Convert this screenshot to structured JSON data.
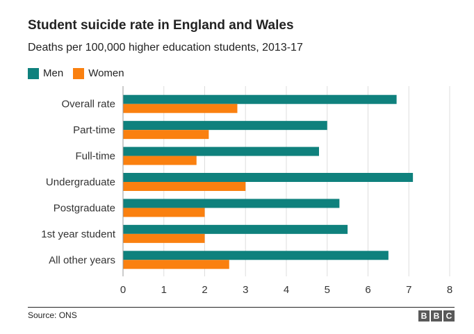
{
  "title": "Student suicide rate in England and Wales",
  "subtitle": "Deaths per 100,000 higher education students, 2013-17",
  "source": "Source: ONS",
  "logo": [
    "B",
    "B",
    "C"
  ],
  "colors": {
    "men": "#0f817d",
    "women": "#fa800f",
    "grid": "#dddddd",
    "axis": "#999999",
    "logo_bg": "#595959"
  },
  "chart_data": {
    "type": "bar",
    "orientation": "horizontal",
    "categories": [
      "Overall rate",
      "Part-time",
      "Full-time",
      "Undergraduate",
      "Postgraduate",
      "1st year student",
      "All other years"
    ],
    "series": [
      {
        "name": "Men",
        "values": [
          6.7,
          5.0,
          4.8,
          7.1,
          5.3,
          5.5,
          6.5
        ]
      },
      {
        "name": "Women",
        "values": [
          2.8,
          2.1,
          1.8,
          3.0,
          2.0,
          2.0,
          2.6
        ]
      }
    ],
    "xlim": [
      0,
      8
    ],
    "xticks": [
      "0",
      "1",
      "2",
      "3",
      "4",
      "5",
      "6",
      "7",
      "8"
    ],
    "grid": true,
    "legend": "top-left"
  }
}
